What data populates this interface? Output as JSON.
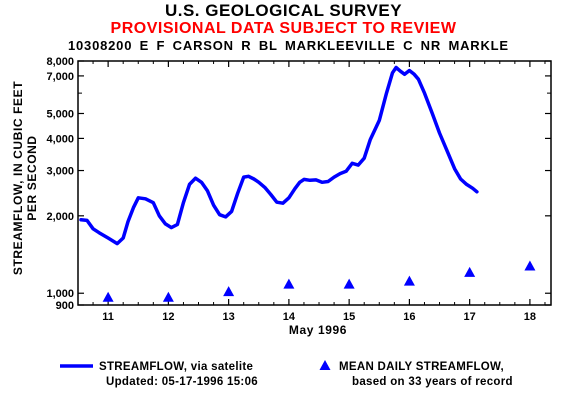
{
  "header": {
    "agency": "U.S. GEOLOGICAL SURVEY",
    "provisional": "PROVISIONAL DATA SUBJECT TO REVIEW",
    "station": "10308200  E F CARSON R BL MARKLEEVILLE C NR MARKLE"
  },
  "chart_data": {
    "type": "line",
    "xlabel": "May 1996",
    "ylabel": [
      "STREAMFLOW, IN CUBIC FEET",
      "PER SECOND"
    ],
    "yscale": "log",
    "ylim": [
      900,
      8000
    ],
    "xlim": [
      10.5,
      18.35
    ],
    "xticks": [
      11,
      12,
      13,
      14,
      15,
      16,
      17,
      18
    ],
    "xtick_labels": [
      "11",
      "12",
      "13",
      "14",
      "15",
      "16",
      "17",
      "18"
    ],
    "yticks": [
      900,
      1000,
      2000,
      3000,
      4000,
      5000,
      7000,
      8000
    ],
    "ytick_labels": [
      "900",
      "1,000",
      "2,000",
      "3,000",
      "4,000",
      "5,000",
      "7,000",
      "8,000"
    ],
    "series": [
      {
        "name": "STREAMFLOW, via satelite",
        "style": "line",
        "color": "#0000ff",
        "x": [
          10.55,
          10.65,
          10.75,
          10.85,
          11.0,
          11.15,
          11.25,
          11.33,
          11.42,
          11.5,
          11.62,
          11.75,
          11.85,
          11.95,
          12.05,
          12.15,
          12.25,
          12.35,
          12.45,
          12.55,
          12.65,
          12.75,
          12.85,
          12.95,
          13.05,
          13.15,
          13.25,
          13.33,
          13.42,
          13.5,
          13.6,
          13.7,
          13.8,
          13.9,
          14.0,
          14.1,
          14.18,
          14.25,
          14.35,
          14.45,
          14.55,
          14.65,
          14.75,
          14.85,
          14.95,
          15.05,
          15.15,
          15.25,
          15.35,
          15.5,
          15.62,
          15.72,
          15.78,
          15.85,
          15.92,
          16.0,
          16.08,
          16.15,
          16.25,
          16.38,
          16.5,
          16.62,
          16.75,
          16.85,
          16.95,
          17.05,
          17.12
        ],
        "y": [
          1930,
          1920,
          1780,
          1720,
          1640,
          1560,
          1640,
          1900,
          2150,
          2350,
          2330,
          2250,
          2000,
          1860,
          1800,
          1850,
          2250,
          2650,
          2800,
          2700,
          2500,
          2200,
          2020,
          1980,
          2080,
          2450,
          2830,
          2850,
          2780,
          2700,
          2580,
          2420,
          2260,
          2240,
          2350,
          2550,
          2700,
          2770,
          2750,
          2760,
          2700,
          2720,
          2830,
          2920,
          2980,
          3200,
          3150,
          3350,
          3950,
          4700,
          6000,
          7200,
          7550,
          7300,
          7100,
          7350,
          7100,
          6800,
          6000,
          5000,
          4200,
          3600,
          3050,
          2780,
          2650,
          2560,
          2480
        ]
      },
      {
        "name": "MEAN DAILY STREAMFLOW,",
        "name_line2": "based on 33 years of record",
        "style": "marker",
        "marker": "triangle",
        "color": "#0000ff",
        "x": [
          11,
          12,
          13,
          14,
          15,
          16,
          17,
          18
        ],
        "y": [
          960,
          960,
          1010,
          1080,
          1080,
          1110,
          1200,
          1270
        ]
      }
    ],
    "legend_updated": "Updated: 05-17-1996  15:06",
    "grid": false,
    "legend_position": "bottom"
  }
}
